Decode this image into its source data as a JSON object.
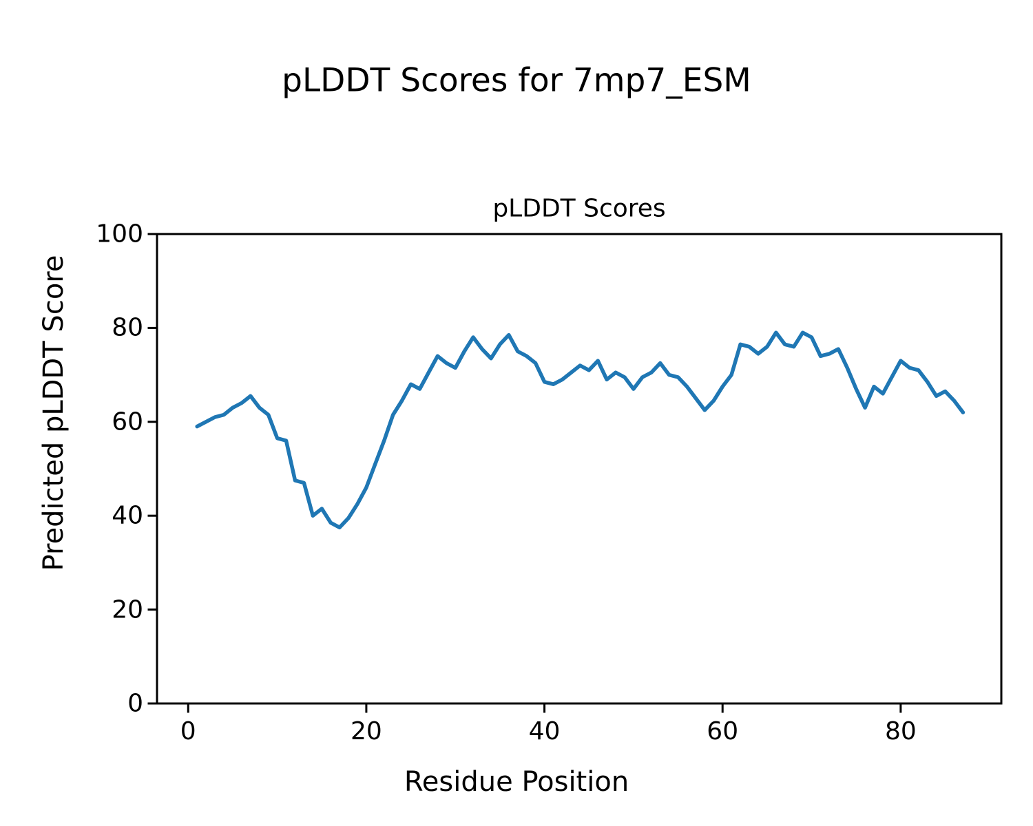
{
  "figure": {
    "suptitle": "pLDDT Scores for 7mp7_ESM"
  },
  "chart_data": {
    "type": "line",
    "title": "pLDDT Scores",
    "xlabel": "Residue Position",
    "ylabel": "Predicted pLDDT Score",
    "series_name": "pLDDT",
    "line_color": "#1f77b4",
    "axis_color": "#000000",
    "grid": false,
    "legend": null,
    "xlim": [
      -3.5,
      91.3
    ],
    "ylim": [
      0,
      100
    ],
    "xticks": [
      0,
      20,
      40,
      60,
      80
    ],
    "yticks": [
      0,
      20,
      40,
      60,
      80,
      100
    ],
    "x": [
      1,
      2,
      3,
      4,
      5,
      6,
      7,
      8,
      9,
      10,
      11,
      12,
      13,
      14,
      15,
      16,
      17,
      18,
      19,
      20,
      21,
      22,
      23,
      24,
      25,
      26,
      27,
      28,
      29,
      30,
      31,
      32,
      33,
      34,
      35,
      36,
      37,
      38,
      39,
      40,
      41,
      42,
      43,
      44,
      45,
      46,
      47,
      48,
      49,
      50,
      51,
      52,
      53,
      54,
      55,
      56,
      57,
      58,
      59,
      60,
      61,
      62,
      63,
      64,
      65,
      66,
      67,
      68,
      69,
      70,
      71,
      72,
      73,
      74,
      75,
      76,
      77,
      78,
      79,
      80,
      81,
      82,
      83,
      84,
      85,
      86,
      87
    ],
    "values": [
      59,
      60,
      61,
      61.5,
      63,
      64,
      65.5,
      63,
      61.5,
      56.5,
      56,
      47.5,
      47,
      40,
      41.5,
      38.5,
      37.5,
      39.5,
      42.5,
      46,
      51,
      56,
      61.5,
      64.5,
      68,
      67,
      70.5,
      74,
      72.5,
      71.5,
      75,
      78,
      75.5,
      73.5,
      76.5,
      78.5,
      75,
      74,
      72.5,
      68.5,
      68,
      69,
      70.5,
      72,
      71,
      73,
      69,
      70.5,
      69.5,
      67,
      69.5,
      70.5,
      72.5,
      70,
      69.5,
      67.5,
      65,
      62.5,
      64.5,
      67.5,
      70,
      76.5,
      76,
      74.5,
      76,
      79,
      76.5,
      76,
      79,
      78,
      74,
      74.5,
      75.5,
      71.5,
      67,
      63,
      67.5,
      66,
      69.5,
      73,
      71.5,
      71,
      68.5,
      65.5,
      66.5,
      64.5,
      62
    ]
  }
}
